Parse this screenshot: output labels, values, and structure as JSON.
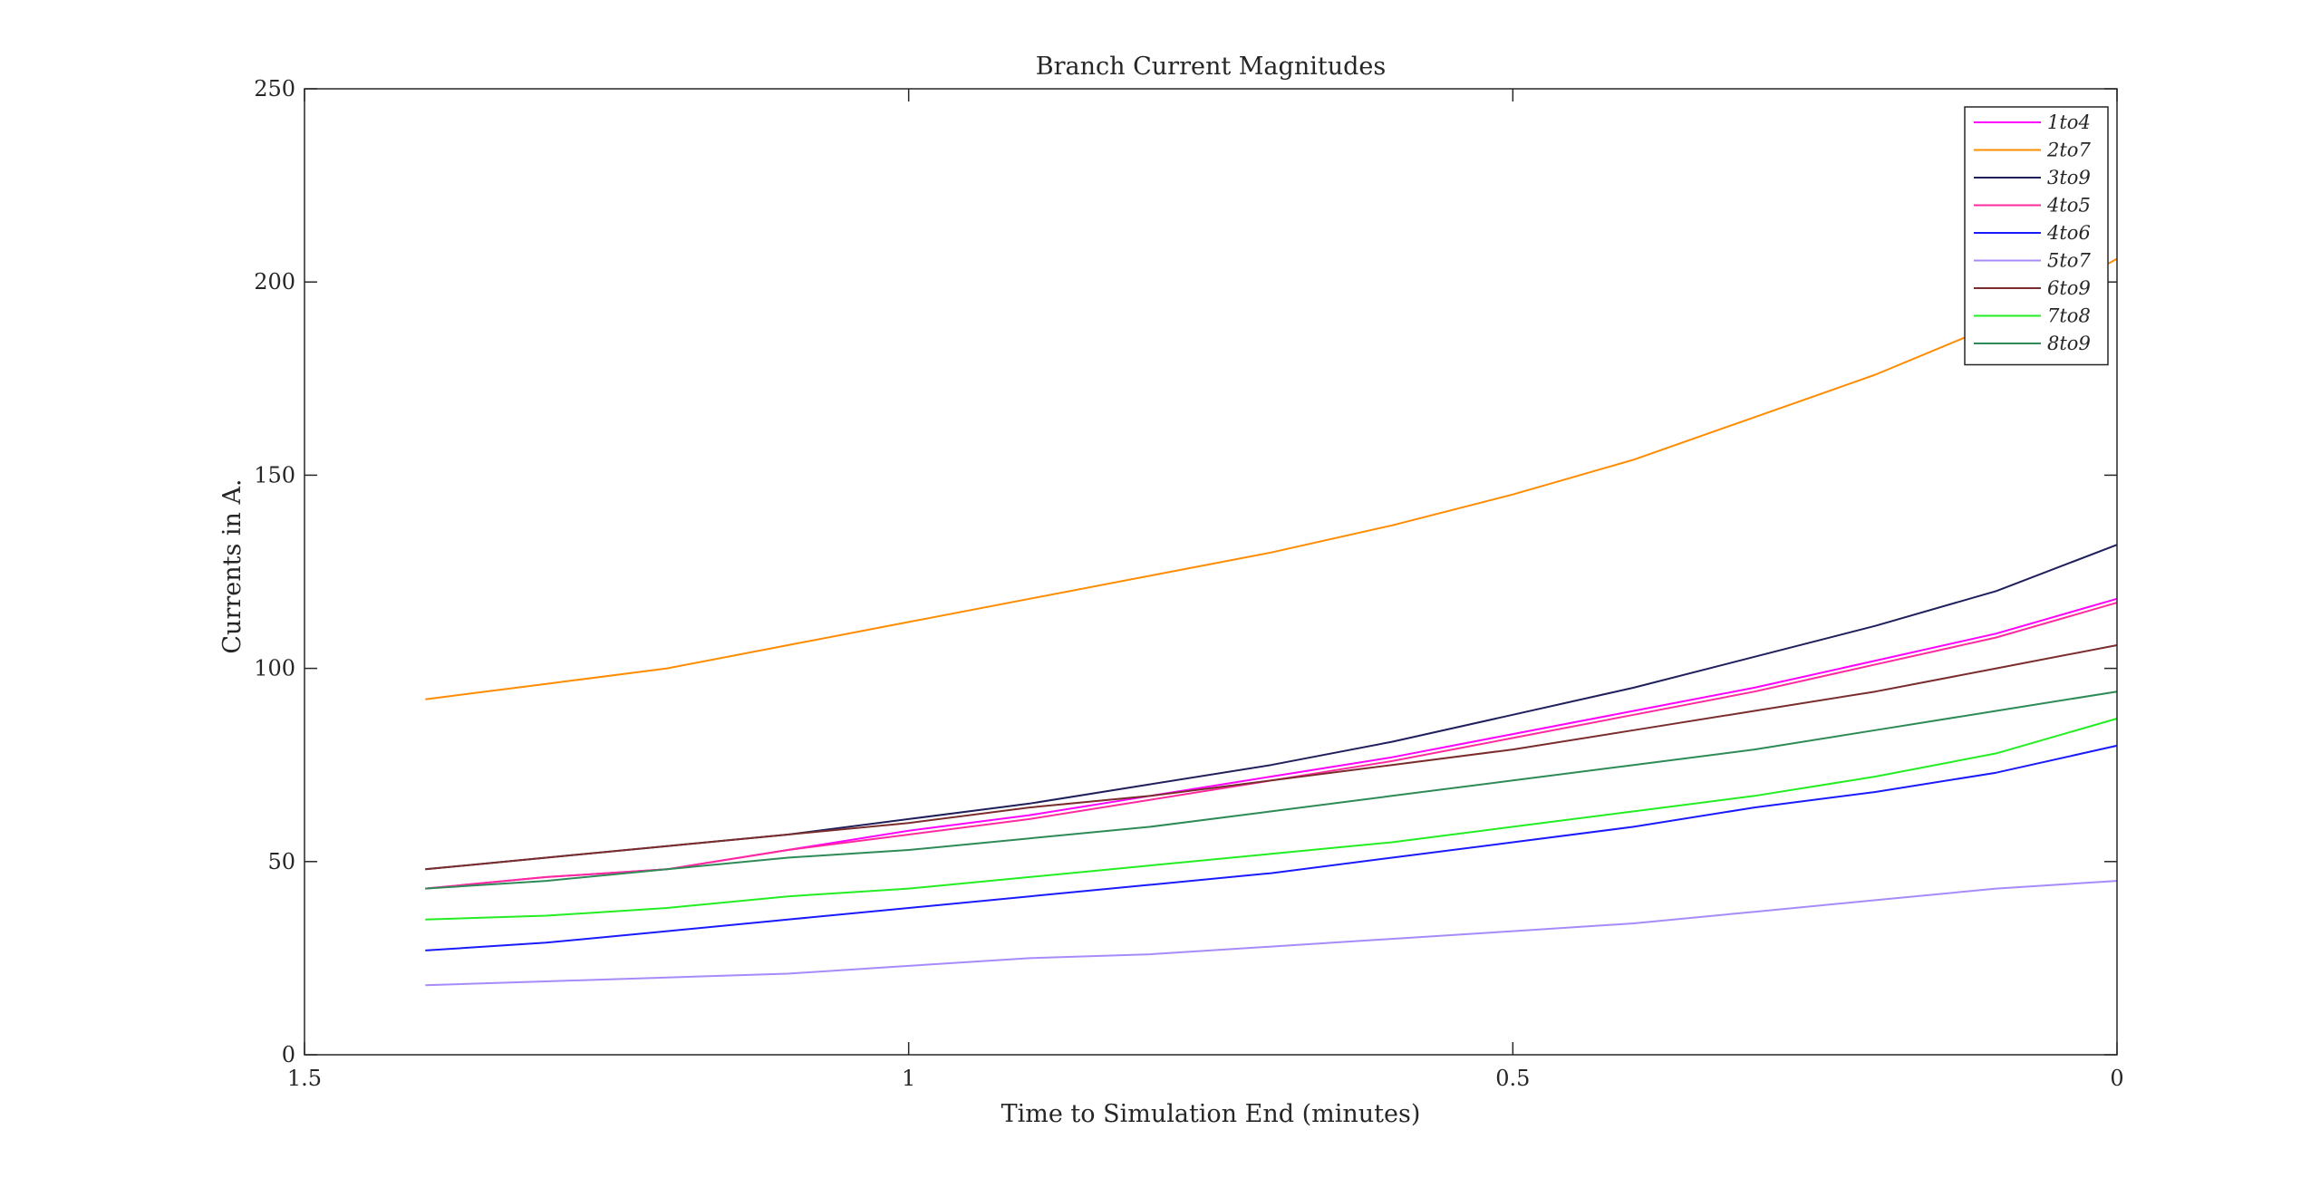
{
  "chart_data": {
    "type": "line",
    "title": "Branch Current Magnitudes",
    "xlabel": "Time to Simulation End (minutes)",
    "ylabel": "Currents in A.",
    "xlim": [
      1.5,
      0
    ],
    "x_reversed": true,
    "ylim": [
      0,
      250
    ],
    "xticks": [
      "1.5",
      "1",
      "0.5",
      "0"
    ],
    "yticks": [
      "0",
      "50",
      "100",
      "150",
      "200",
      "250"
    ],
    "grid": false,
    "legend_position": "top-right",
    "x": [
      1.4,
      1.3,
      1.2,
      1.1,
      1.0,
      0.9,
      0.8,
      0.7,
      0.6,
      0.5,
      0.4,
      0.3,
      0.2,
      0.1,
      0.0
    ],
    "series": [
      {
        "name": "1to4",
        "color": "#ff00ff",
        "values": [
          43,
          46,
          48,
          53,
          58,
          62,
          67,
          72,
          77,
          83,
          89,
          95,
          102,
          109,
          118
        ]
      },
      {
        "name": "2to7",
        "color": "#ff8c00",
        "values": [
          92,
          96,
          100,
          106,
          112,
          118,
          124,
          130,
          137,
          145,
          154,
          165,
          176,
          189,
          206
        ]
      },
      {
        "name": "3to9",
        "color": "#1f1f5c",
        "values": [
          48,
          51,
          54,
          57,
          61,
          65,
          70,
          75,
          81,
          88,
          95,
          103,
          111,
          120,
          132
        ]
      },
      {
        "name": "4to5",
        "color": "#ff2a9d",
        "values": [
          43,
          46,
          48,
          53,
          57,
          61,
          66,
          71,
          76,
          82,
          88,
          94,
          101,
          108,
          117
        ]
      },
      {
        "name": "4to6",
        "color": "#1a1aff",
        "values": [
          27,
          29,
          32,
          35,
          38,
          41,
          44,
          47,
          51,
          55,
          59,
          64,
          68,
          73,
          80
        ]
      },
      {
        "name": "5to7",
        "color": "#a78bfa",
        "values": [
          18,
          19,
          20,
          21,
          23,
          25,
          26,
          28,
          30,
          32,
          34,
          37,
          40,
          43,
          45
        ]
      },
      {
        "name": "6to9",
        "color": "#7b2d2d",
        "values": [
          48,
          51,
          54,
          57,
          60,
          64,
          67,
          71,
          75,
          79,
          84,
          89,
          94,
          100,
          106
        ]
      },
      {
        "name": "7to8",
        "color": "#22ee22",
        "values": [
          35,
          36,
          38,
          41,
          43,
          46,
          49,
          52,
          55,
          59,
          63,
          67,
          72,
          78,
          87
        ]
      },
      {
        "name": "8to9",
        "color": "#2e8b57",
        "values": [
          43,
          45,
          48,
          51,
          53,
          56,
          59,
          63,
          67,
          71,
          75,
          79,
          84,
          89,
          94
        ]
      }
    ]
  }
}
